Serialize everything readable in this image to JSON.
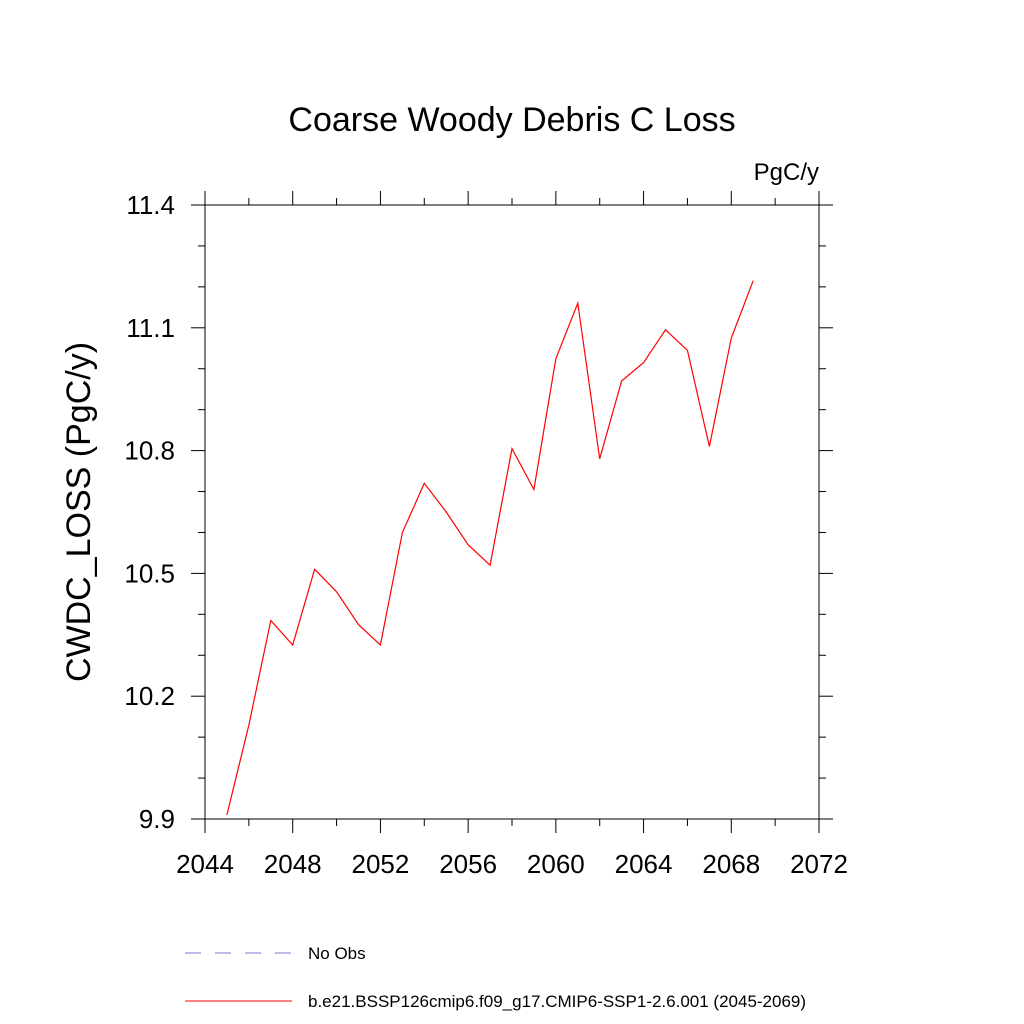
{
  "chart_data": {
    "type": "line",
    "title": "Coarse Woody Debris C Loss",
    "units": "PgC/y",
    "ylabel": "CWDC_LOSS  (PgC/y)",
    "xlabel": "",
    "xlim": [
      2044,
      2072
    ],
    "ylim": [
      9.9,
      11.4
    ],
    "x_ticks": [
      2044,
      2048,
      2052,
      2056,
      2060,
      2064,
      2068,
      2072
    ],
    "x_tick_labels": [
      "2044",
      "2048",
      "2052",
      "2056",
      "2060",
      "2064",
      "2068",
      "2072"
    ],
    "x_minor_step": 2,
    "y_ticks": [
      9.9,
      10.2,
      10.5,
      10.8,
      11.1,
      11.4
    ],
    "y_tick_labels": [
      "9.9",
      "10.2",
      "10.5",
      "10.8",
      "11.1",
      "11.4"
    ],
    "y_minor_step": 0.1,
    "grid": false,
    "legend_placement": "bottom",
    "series": [
      {
        "name": "b.e21.BSSP126cmip6.f09_g17.CMIP6-SSP1-2.6.001 (2045-2069)",
        "color": "#ff0000",
        "style": "solid",
        "x": [
          2045,
          2046,
          2047,
          2048,
          2049,
          2050,
          2051,
          2052,
          2053,
          2054,
          2055,
          2056,
          2057,
          2058,
          2059,
          2060,
          2061,
          2062,
          2063,
          2064,
          2065,
          2066,
          2067,
          2068,
          2069
        ],
        "values": [
          9.91,
          10.13,
          10.385,
          10.325,
          10.51,
          10.455,
          10.375,
          10.325,
          10.6,
          10.72,
          10.65,
          10.57,
          10.52,
          10.805,
          10.705,
          11.025,
          11.16,
          10.78,
          10.97,
          11.015,
          11.095,
          11.045,
          10.81,
          11.075,
          11.215
        ]
      },
      {
        "name": "No Obs",
        "color": "#7777cc",
        "style": "dashed",
        "x": [],
        "values": []
      }
    ]
  }
}
